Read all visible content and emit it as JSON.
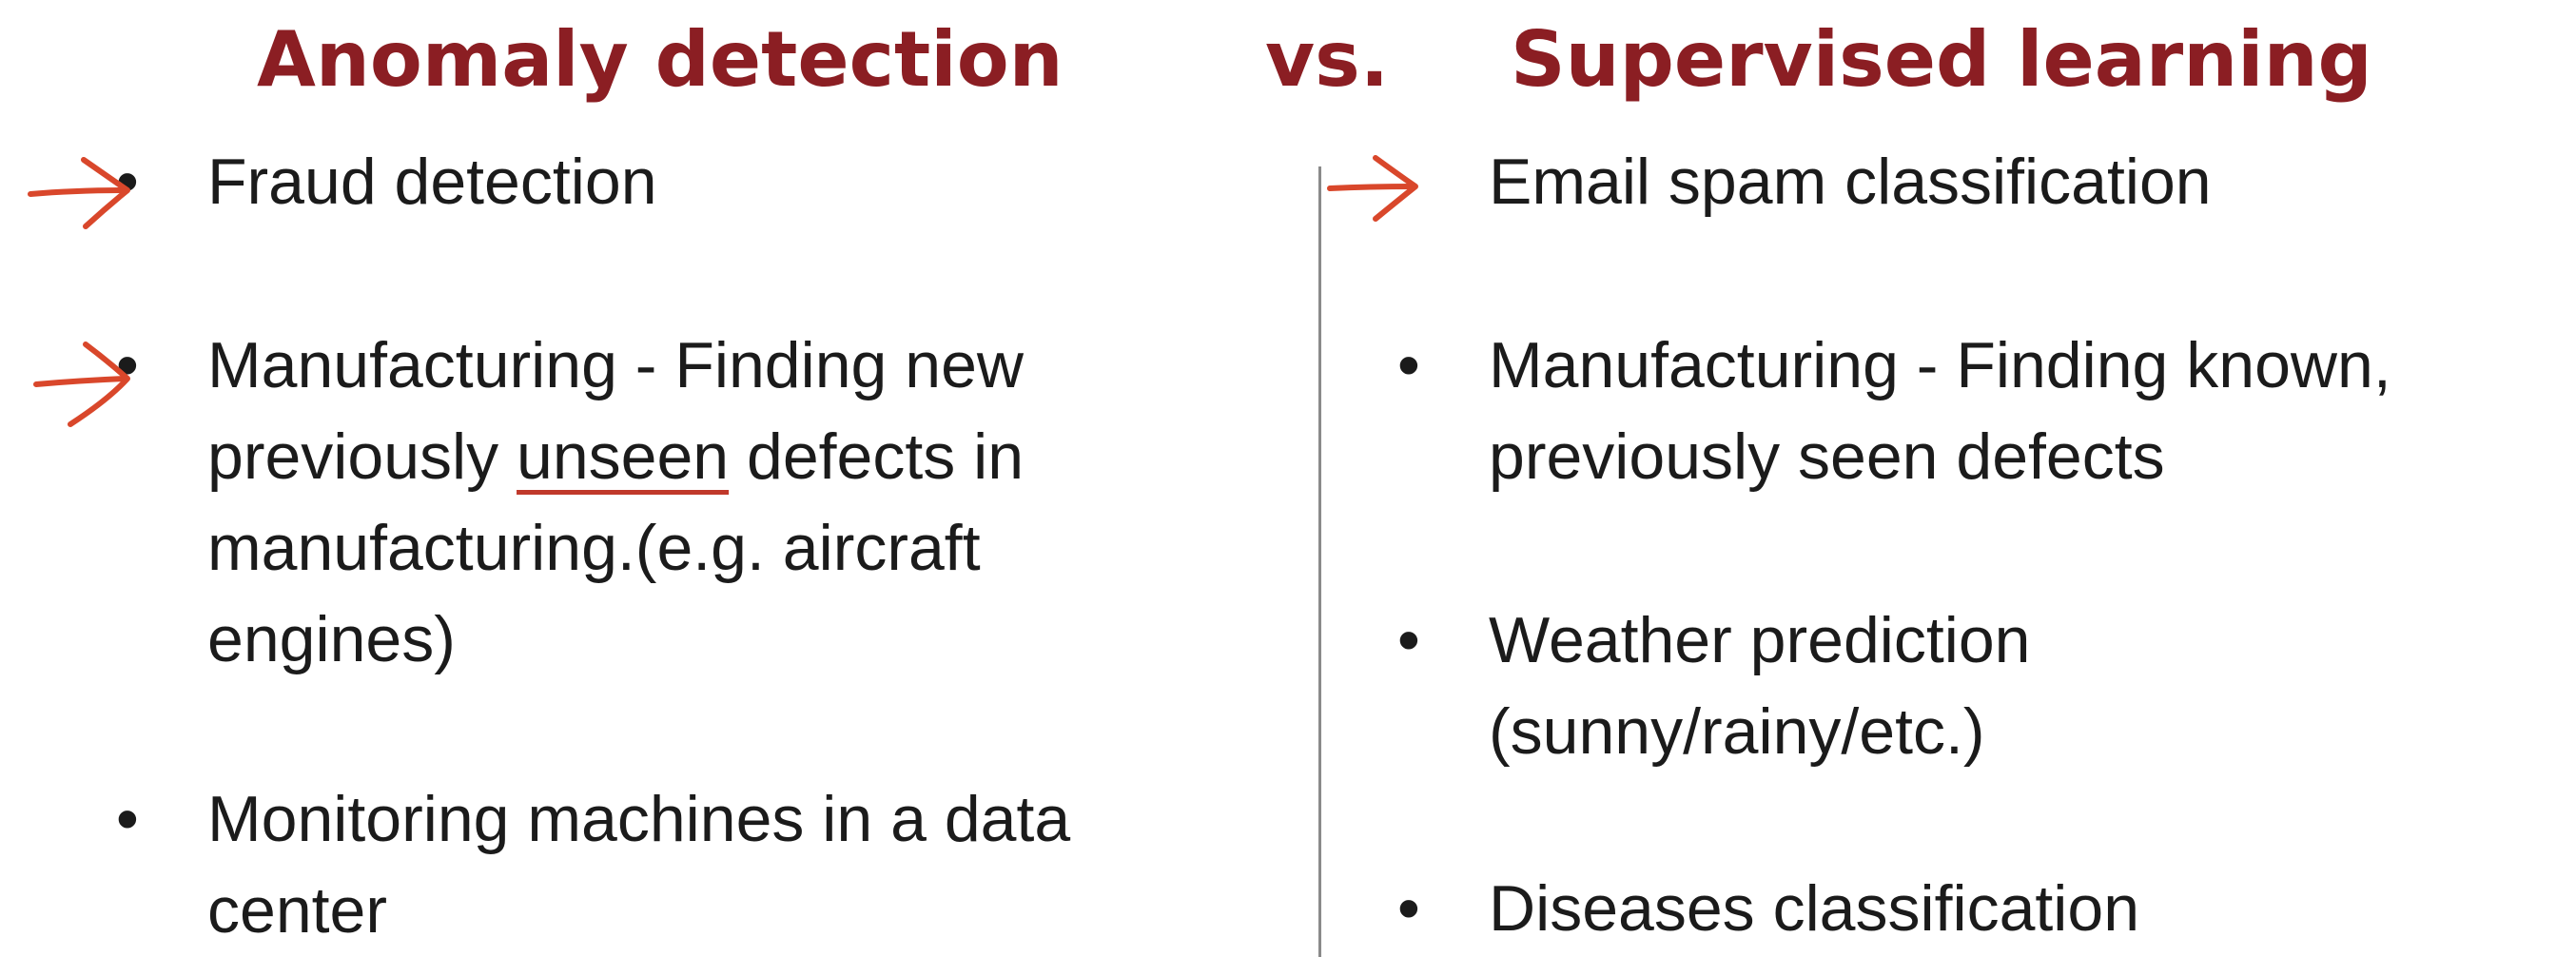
{
  "title": {
    "left": "Anomaly detection",
    "vs": "vs.",
    "right": "Supervised learning"
  },
  "colors": {
    "title": "#8b1e23",
    "text": "#1b1b1b",
    "annotation": "#d9472b",
    "divider": "#8a8a8a"
  },
  "left_items": [
    {
      "lines": [
        "Fraud detection"
      ]
    },
    {
      "line1": "Manufacturing -  Finding new",
      "line2_pre": "previously ",
      "line2_underlined": "unseen",
      "line2_post": " defects in",
      "line3": "manufacturing.(e.g. aircraft",
      "line4": "engines)"
    },
    {
      "lines": [
        "Monitoring machines in a data",
        "center"
      ]
    }
  ],
  "right_items": [
    {
      "lines": [
        "Email spam classification"
      ]
    },
    {
      "lines": [
        "Manufacturing -  Finding known,",
        "previously seen defects"
      ]
    },
    {
      "lines": [
        "Weather prediction",
        "(sunny/rainy/etc.)"
      ]
    },
    {
      "lines": [
        "Diseases classification"
      ]
    }
  ],
  "bullet": "•",
  "annotations": [
    "arrow-icon",
    "arrow-icon",
    "arrow-icon"
  ]
}
